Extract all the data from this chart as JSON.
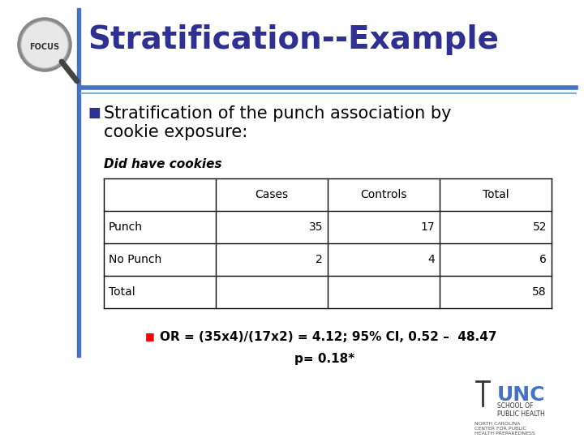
{
  "title": "Stratification--Example",
  "title_color": "#2E3192",
  "bullet_text_line1": "Stratification of the punch association by",
  "bullet_text_line2": "cookie exposure:",
  "subtitle": "Did have cookies",
  "table_headers": [
    "",
    "Cases",
    "Controls",
    "Total"
  ],
  "table_rows": [
    [
      "Punch",
      "35",
      "17",
      "52"
    ],
    [
      "No Punch",
      "2",
      "4",
      "6"
    ],
    [
      "Total",
      "",
      "",
      "58"
    ]
  ],
  "or_text": "OR = (35x4)/(17x2) = 4.12; 95% CI, 0.52 –  48.47",
  "p_text": "p= 0.18*",
  "bullet_color": "#2E3192",
  "or_bullet_color": "#FF0000",
  "background_color": "#FFFFFF",
  "blue_line_color": "#4472C4",
  "blue_line_light": "#7BAFD4",
  "left_bar_color": "#4472C4",
  "table_line_color": "#000000",
  "text_color": "#000000"
}
